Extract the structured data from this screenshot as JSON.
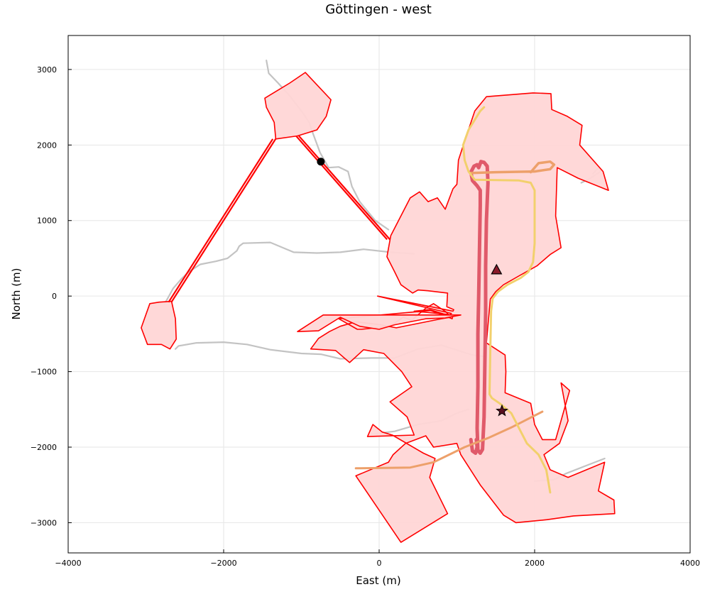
{
  "chart_data": {
    "type": "map-plot",
    "title": "Göttingen - west",
    "xlabel": "East (m)",
    "ylabel": "North (m)",
    "xlim": [
      -4000,
      4000
    ],
    "ylim": [
      -3400,
      3450
    ],
    "xticks": [
      -4000,
      -2000,
      0,
      2000,
      4000
    ],
    "yticks": [
      -3000,
      -2000,
      -1000,
      0,
      1000,
      2000,
      3000
    ],
    "xtick_labels": [
      "−4000",
      "−2000",
      "0",
      "2000",
      "4000"
    ],
    "ytick_labels": [
      "−3000",
      "−2000",
      "−1000",
      "0",
      "1000",
      "2000",
      "3000"
    ],
    "grid": true,
    "colors": {
      "zone_fill": "#ffd6d6",
      "zone_edge": "#ff0000",
      "road": "#c3c3c3",
      "line_red": "#e05a6a",
      "line_orange": "#eda06a",
      "line_yellow": "#f2d06c"
    },
    "zones": [
      {
        "name": "north-west-cluster",
        "points": [
          [
            -1470,
            2620
          ],
          [
            -1450,
            2500
          ],
          [
            -1350,
            2300
          ],
          [
            -1330,
            2080
          ],
          [
            -1050,
            2120
          ],
          [
            -800,
            2200
          ],
          [
            -680,
            2380
          ],
          [
            -620,
            2600
          ],
          [
            -950,
            2960
          ],
          [
            -1150,
            2820
          ]
        ]
      },
      {
        "name": "far-west-cluster",
        "points": [
          [
            -2950,
            -100
          ],
          [
            -2830,
            -80
          ],
          [
            -2670,
            -70
          ],
          [
            -2620,
            -300
          ],
          [
            -2610,
            -570
          ],
          [
            -2690,
            -700
          ],
          [
            -2800,
            -640
          ],
          [
            -2980,
            -640
          ],
          [
            -3060,
            -420
          ]
        ]
      },
      {
        "name": "central-east-cluster",
        "points": [
          [
            150,
            800
          ],
          [
            400,
            1300
          ],
          [
            520,
            1380
          ],
          [
            630,
            1250
          ],
          [
            750,
            1300
          ],
          [
            850,
            1150
          ],
          [
            950,
            1420
          ],
          [
            1000,
            1480
          ],
          [
            1020,
            1800
          ],
          [
            1100,
            2050
          ],
          [
            1230,
            2450
          ],
          [
            1380,
            2640
          ],
          [
            1980,
            2690
          ],
          [
            2210,
            2680
          ],
          [
            2220,
            2470
          ],
          [
            2420,
            2380
          ],
          [
            2610,
            2260
          ],
          [
            2580,
            2000
          ],
          [
            2880,
            1650
          ],
          [
            2950,
            1400
          ],
          [
            2560,
            1560
          ],
          [
            2290,
            1700
          ],
          [
            2270,
            1060
          ],
          [
            2340,
            640
          ],
          [
            2200,
            550
          ],
          [
            2030,
            400
          ],
          [
            1820,
            280
          ],
          [
            1600,
            150
          ],
          [
            1500,
            60
          ],
          [
            1430,
            -40
          ],
          [
            1380,
            -620
          ],
          [
            1620,
            -780
          ],
          [
            1630,
            -1000
          ],
          [
            1620,
            -1280
          ],
          [
            1950,
            -1420
          ],
          [
            2000,
            -1700
          ],
          [
            2100,
            -1900
          ],
          [
            2270,
            -1900
          ],
          [
            2450,
            -1250
          ],
          [
            2340,
            -1150
          ],
          [
            2430,
            -1650
          ],
          [
            2320,
            -1950
          ],
          [
            2120,
            -2100
          ],
          [
            2200,
            -2300
          ],
          [
            2430,
            -2400
          ],
          [
            2900,
            -2200
          ],
          [
            2820,
            -2580
          ],
          [
            3020,
            -2700
          ],
          [
            3030,
            -2880
          ],
          [
            2500,
            -2910
          ],
          [
            2160,
            -2960
          ],
          [
            1760,
            -3000
          ],
          [
            1600,
            -2900
          ],
          [
            1300,
            -2500
          ],
          [
            1050,
            -2100
          ],
          [
            1000,
            -1950
          ],
          [
            700,
            -2000
          ],
          [
            600,
            -1850
          ],
          [
            340,
            -1950
          ],
          [
            180,
            -2100
          ],
          [
            120,
            -2200
          ],
          [
            -300,
            -2380
          ],
          [
            280,
            -3260
          ],
          [
            880,
            -2880
          ],
          [
            650,
            -2400
          ],
          [
            720,
            -2150
          ],
          [
            570,
            -2080
          ],
          [
            170,
            -1840
          ],
          [
            40,
            -1800
          ],
          [
            -80,
            -1700
          ],
          [
            -150,
            -1860
          ],
          [
            450,
            -1840
          ],
          [
            360,
            -1600
          ],
          [
            140,
            -1400
          ],
          [
            280,
            -1300
          ],
          [
            420,
            -1200
          ],
          [
            290,
            -1000
          ],
          [
            60,
            -760
          ],
          [
            -200,
            -710
          ],
          [
            -380,
            -880
          ],
          [
            -560,
            -720
          ],
          [
            -880,
            -700
          ],
          [
            -780,
            -560
          ],
          [
            -640,
            -470
          ],
          [
            -500,
            -400
          ],
          [
            -300,
            -340
          ],
          [
            20,
            -380
          ],
          [
            220,
            -420
          ],
          [
            800,
            -300
          ],
          [
            920,
            -280
          ],
          [
            860,
            -210
          ],
          [
            700,
            -100
          ],
          [
            600,
            -160
          ],
          [
            420,
            -320
          ],
          [
            310,
            -280
          ],
          [
            140,
            -400
          ],
          [
            -230,
            -440
          ],
          [
            -280,
            -440
          ],
          [
            -520,
            -300
          ],
          [
            660,
            -190
          ],
          [
            940,
            -300
          ],
          [
            950,
            -250
          ],
          [
            450,
            -200
          ],
          [
            650,
            -180
          ],
          [
            900,
            -260
          ],
          [
            930,
            -230
          ],
          [
            -20,
            0
          ],
          [
            950,
            -200
          ],
          [
            960,
            -180
          ],
          [
            870,
            -140
          ],
          [
            880,
            40
          ],
          [
            630,
            70
          ],
          [
            500,
            80
          ],
          [
            430,
            40
          ],
          [
            280,
            150
          ],
          [
            200,
            320
          ],
          [
            100,
            520
          ]
        ]
      },
      {
        "name": "south-cluster",
        "points": [
          [
            -1050,
            -470
          ],
          [
            -780,
            -460
          ],
          [
            -500,
            -280
          ],
          [
            -250,
            -400
          ],
          [
            0,
            -440
          ],
          [
            200,
            -380
          ],
          [
            600,
            -300
          ],
          [
            850,
            -290
          ],
          [
            1050,
            -250
          ],
          [
            -720,
            -250
          ]
        ]
      }
    ],
    "links": [
      {
        "name": "link-north-to-centre",
        "points": [
          [
            -1050,
            2120
          ],
          [
            120,
            750
          ]
        ]
      },
      {
        "name": "link-north-to-west",
        "points": [
          [
            -1350,
            2080
          ],
          [
            -2690,
            -80
          ]
        ]
      }
    ],
    "lines": [
      {
        "name": "route-red",
        "color": "#e05a6a",
        "width": 5,
        "points": [
          [
            1280,
            1700
          ],
          [
            1310,
            1780
          ],
          [
            1350,
            1770
          ],
          [
            1390,
            1720
          ],
          [
            1400,
            1500
          ],
          [
            1380,
            1000
          ],
          [
            1370,
            400
          ],
          [
            1370,
            -200
          ],
          [
            1360,
            -900
          ],
          [
            1350,
            -1600
          ],
          [
            1330,
            -2030
          ],
          [
            1300,
            -2080
          ],
          [
            1270,
            -2040
          ],
          [
            1260,
            -1750
          ],
          [
            1270,
            -1200
          ],
          [
            1270,
            -500
          ],
          [
            1280,
            0
          ],
          [
            1290,
            600
          ],
          [
            1300,
            1200
          ],
          [
            1300,
            1400
          ],
          [
            1260,
            1460
          ],
          [
            1200,
            1530
          ],
          [
            1180,
            1640
          ],
          [
            1220,
            1720
          ],
          [
            1260,
            1740
          ],
          [
            1280,
            1700
          ]
        ]
      },
      {
        "name": "route-red-loop-south",
        "color": "#e05a6a",
        "width": 5,
        "points": [
          [
            1180,
            -1900
          ],
          [
            1200,
            -2050
          ],
          [
            1240,
            -2080
          ],
          [
            1260,
            -2000
          ],
          [
            1250,
            -1900
          ]
        ]
      },
      {
        "name": "route-orange-north",
        "color": "#eda06a",
        "width": 3.5,
        "points": [
          [
            1180,
            1630
          ],
          [
            1500,
            1640
          ],
          [
            2000,
            1650
          ],
          [
            2200,
            1680
          ],
          [
            2250,
            1740
          ],
          [
            2200,
            1780
          ],
          [
            2050,
            1760
          ],
          [
            1950,
            1640
          ]
        ]
      },
      {
        "name": "route-orange-south",
        "color": "#eda06a",
        "width": 3,
        "points": [
          [
            -300,
            -2280
          ],
          [
            400,
            -2270
          ],
          [
            700,
            -2200
          ],
          [
            1100,
            -2000
          ],
          [
            1400,
            -1880
          ],
          [
            1700,
            -1740
          ],
          [
            2100,
            -1530
          ]
        ]
      },
      {
        "name": "route-yellow",
        "color": "#f2d06c",
        "width": 3,
        "points": [
          [
            1350,
            2500
          ],
          [
            1300,
            2450
          ],
          [
            1150,
            2200
          ],
          [
            1080,
            2000
          ],
          [
            1100,
            1800
          ],
          [
            1150,
            1650
          ],
          [
            1230,
            1540
          ],
          [
            1800,
            1530
          ],
          [
            1950,
            1500
          ],
          [
            2000,
            1400
          ],
          [
            2000,
            1100
          ],
          [
            2000,
            700
          ],
          [
            1980,
            450
          ],
          [
            1920,
            320
          ],
          [
            1820,
            240
          ],
          [
            1650,
            150
          ],
          [
            1530,
            60
          ],
          [
            1460,
            -30
          ],
          [
            1440,
            -200
          ],
          [
            1430,
            -700
          ],
          [
            1420,
            -1300
          ],
          [
            1450,
            -1350
          ],
          [
            1550,
            -1420
          ],
          [
            1700,
            -1550
          ],
          [
            1800,
            -1750
          ],
          [
            1900,
            -1950
          ],
          [
            2050,
            -2100
          ],
          [
            2150,
            -2300
          ],
          [
            2200,
            -2600
          ]
        ]
      }
    ],
    "roads": [
      [
        [
          -1450,
          3120
        ],
        [
          -1420,
          2950
        ],
        [
          -1300,
          2820
        ],
        [
          -1150,
          2650
        ],
        [
          -1000,
          2450
        ],
        [
          -900,
          2300
        ],
        [
          -850,
          2150
        ],
        [
          -760,
          1900
        ],
        [
          -650,
          1700
        ],
        [
          -520,
          1710
        ],
        [
          -400,
          1650
        ],
        [
          -350,
          1450
        ],
        [
          -250,
          1250
        ],
        [
          -50,
          1000
        ],
        [
          120,
          880
        ]
      ],
      [
        [
          -2620,
          -700
        ],
        [
          -2580,
          -660
        ],
        [
          -2350,
          -620
        ],
        [
          -2000,
          -610
        ],
        [
          -1700,
          -640
        ],
        [
          -1400,
          -710
        ],
        [
          -1000,
          -760
        ],
        [
          -750,
          -770
        ],
        [
          -500,
          -830
        ],
        [
          -100,
          -820
        ],
        [
          200,
          -820
        ],
        [
          500,
          -700
        ],
        [
          800,
          -650
        ],
        [
          1200,
          -780
        ],
        [
          1350,
          -800
        ]
      ],
      [
        [
          -2760,
          -100
        ],
        [
          -2720,
          -30
        ],
        [
          -2650,
          100
        ],
        [
          -2550,
          220
        ],
        [
          -2450,
          320
        ],
        [
          -2300,
          420
        ],
        [
          -2100,
          460
        ],
        [
          -1950,
          500
        ],
        [
          -1830,
          600
        ],
        [
          -1800,
          660
        ],
        [
          -1750,
          700
        ],
        [
          -1400,
          710
        ],
        [
          -1100,
          580
        ],
        [
          -800,
          570
        ],
        [
          -500,
          580
        ],
        [
          -200,
          620
        ],
        [
          150,
          580
        ],
        [
          450,
          560
        ]
      ],
      [
        [
          -100,
          -1830
        ],
        [
          200,
          -1790
        ],
        [
          500,
          -1700
        ],
        [
          800,
          -1650
        ],
        [
          1000,
          -1550
        ],
        [
          1150,
          -1500
        ]
      ],
      [
        [
          2900,
          -2150
        ],
        [
          2700,
          -2230
        ],
        [
          2400,
          -2350
        ],
        [
          2250,
          -2430
        ],
        [
          2000,
          -2450
        ]
      ],
      [
        [
          2600,
          1500
        ],
        [
          2700,
          1550
        ],
        [
          2850,
          1650
        ],
        [
          2820,
          1700
        ],
        [
          2750,
          1620
        ]
      ]
    ],
    "markers": [
      {
        "name": "circle-marker",
        "shape": "circle",
        "x": -750,
        "y": 1780,
        "color": "#000000"
      },
      {
        "name": "triangle-marker",
        "shape": "triangle",
        "x": 1510,
        "y": 350,
        "color": "#8b1a2a"
      },
      {
        "name": "star-marker",
        "shape": "star",
        "x": 1580,
        "y": -1520,
        "color": "#5a1020"
      }
    ]
  }
}
